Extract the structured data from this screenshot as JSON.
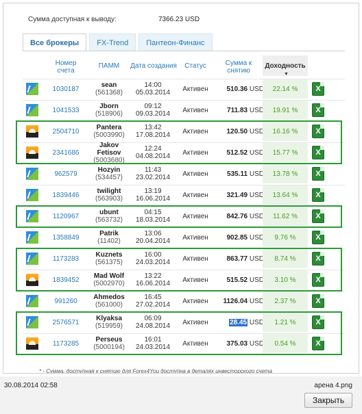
{
  "balance": {
    "label": "Сумма доступная к выводу:",
    "value": "7366.23 USD"
  },
  "tabs": [
    "Все брокеры",
    "FX-Trend",
    "Пантеон-Финанс"
  ],
  "headers": {
    "account": "Номер счета",
    "pamm": "ПАММ",
    "created": "Дата создания",
    "status": "Статус",
    "sum": "Сумма к снятию",
    "yield": "Доходность",
    "sort_arrow": "▼"
  },
  "rows": [
    {
      "icon": "fxtrend-logo-icon",
      "account": "1030187",
      "name": "sean",
      "id": "(561368)",
      "time": "14:00",
      "date": "05.03.2014",
      "status": "Активен",
      "sum": "510.36",
      "cur": "USD",
      "yield": "22.14 %"
    },
    {
      "icon": "fxtrend-logo-icon",
      "account": "1041533",
      "name": "Jborn",
      "id": "(518906)",
      "time": "09:12",
      "date": "09.03.2014",
      "status": "Активен",
      "sum": "711.83",
      "cur": "USD",
      "yield": "19.91 %"
    },
    {
      "icon": "panteon-logo-icon",
      "account": "2504710",
      "name": "Pantera",
      "id": "(5003990)",
      "time": "13:42",
      "date": "17.08.2014",
      "status": "Активен",
      "sum": "120.50",
      "cur": "USD",
      "yield": "16.16 %"
    },
    {
      "icon": "panteon-logo-icon",
      "account": "2341686",
      "name": "Jakov Fetisov",
      "id": "(5003680)",
      "time": "12:24",
      "date": "04.08.2014",
      "status": "Активен",
      "sum": "512.52",
      "cur": "USD",
      "yield": "15.77 %"
    },
    {
      "icon": "fxtrend-logo-icon",
      "account": "962579",
      "name": "Hozyin",
      "id": "(534457)",
      "time": "11:43",
      "date": "23.02.2014",
      "status": "Активен",
      "sum": "535.11",
      "cur": "USD",
      "yield": "13.78 %"
    },
    {
      "icon": "fxtrend-logo-icon",
      "account": "1839446",
      "name": "twilight",
      "id": "(563903)",
      "time": "13:19",
      "date": "16.06.2014",
      "status": "Активен",
      "sum": "321.49",
      "cur": "USD",
      "yield": "13.64 %"
    },
    {
      "icon": "fxtrend-logo-icon",
      "account": "1120967",
      "name": "ubunt",
      "id": "(563732)",
      "time": "04:15",
      "date": "18.03.2014",
      "status": "Активен",
      "sum": "842.76",
      "cur": "USD",
      "yield": "11.62 %"
    },
    {
      "icon": "fxtrend-logo-icon",
      "account": "1358849",
      "name": "Patrik",
      "id": "(11402)",
      "time": "13:06",
      "date": "20.04.2014",
      "status": "Активен",
      "sum": "902.85",
      "cur": "USD",
      "yield": "9.76 %"
    },
    {
      "icon": "fxtrend-logo-icon",
      "account": "1173283",
      "name": "Kuznets",
      "id": "(561375)",
      "time": "16:00",
      "date": "24.03.2014",
      "status": "Активен",
      "sum": "863.77",
      "cur": "USD",
      "yield": "8.74 %"
    },
    {
      "icon": "panteon-logo-icon",
      "account": "1839452",
      "name": "Mad Wolf",
      "id": "(5002970)",
      "time": "13:22",
      "date": "16.06.2014",
      "status": "Активен",
      "sum": "515.52",
      "cur": "USD",
      "yield": "3.10 %"
    },
    {
      "icon": "fxtrend-logo-icon",
      "account": "991260",
      "name": "Ahmedos",
      "id": "(561000)",
      "time": "16:45",
      "date": "27.02.2014",
      "status": "Активен",
      "sum": "1126.04",
      "cur": "USD",
      "yield": "2.37 %"
    },
    {
      "icon": "fxtrend-logo-icon",
      "account": "2576571",
      "name": "Klyaksa",
      "id": "(519959)",
      "time": "06:09",
      "date": "24.08.2014",
      "status": "Активен",
      "sum": "28.45",
      "cur": "USD",
      "yield": "1.21 %",
      "selected": true
    },
    {
      "icon": "panteon-logo-icon",
      "account": "1173285",
      "name": "Perseus",
      "id": "(5000194)",
      "time": "16:01",
      "date": "24.03.2014",
      "status": "Активен",
      "sum": "375.03",
      "cur": "USD",
      "yield": "0.54 %"
    }
  ],
  "highlighted_row_groups": [
    [
      2,
      3
    ],
    [
      6,
      6
    ],
    [
      8,
      9
    ],
    [
      11,
      12
    ]
  ],
  "excel_icon_label": "X",
  "footnote": "* - Сумма, доступная к снятию для Forex4You доступна в деталях инвесторского счета",
  "bottom": {
    "timestamp": "30.08.2014 02:58",
    "filename": "арена 4.png",
    "close_label": "Закрыть"
  },
  "colors": {
    "link": "#2a7ab8",
    "yield": "#4a9a2a",
    "highlight_box": "#2b9a38",
    "selection": "#2f70c8"
  }
}
